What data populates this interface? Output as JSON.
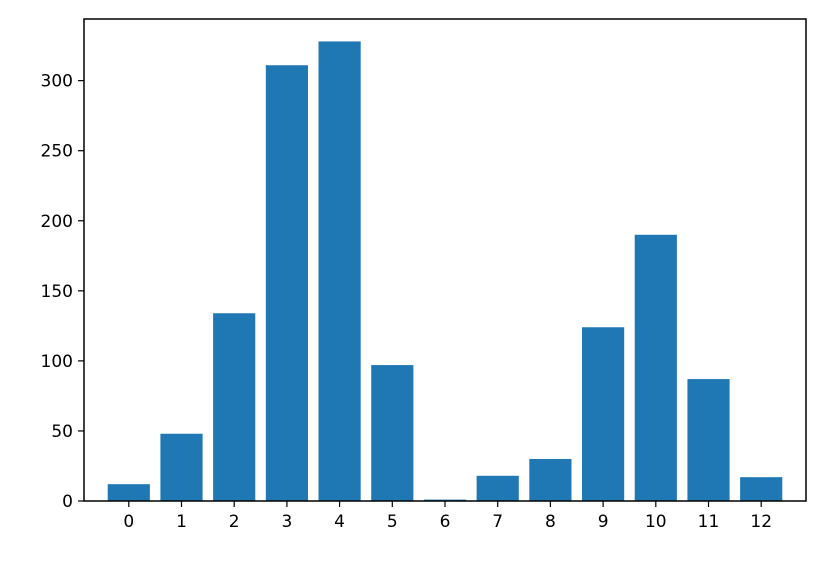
{
  "chart_data": {
    "type": "bar",
    "categories": [
      "0",
      "1",
      "2",
      "3",
      "4",
      "5",
      "6",
      "7",
      "8",
      "9",
      "10",
      "11",
      "12"
    ],
    "x": [
      0,
      1,
      2,
      3,
      4,
      5,
      6,
      7,
      8,
      9,
      10,
      11,
      12
    ],
    "values": [
      12,
      48,
      134,
      311,
      328,
      97,
      1,
      18,
      30,
      124,
      190,
      87,
      17
    ],
    "xlabel": "",
    "ylabel": "",
    "ylim": [
      0,
      344
    ],
    "xlim": [
      -0.85,
      12.85
    ],
    "yticks": [
      0,
      50,
      100,
      150,
      200,
      250,
      300
    ],
    "bar_color": "#1f77b4",
    "grid": false,
    "legend": "none"
  }
}
